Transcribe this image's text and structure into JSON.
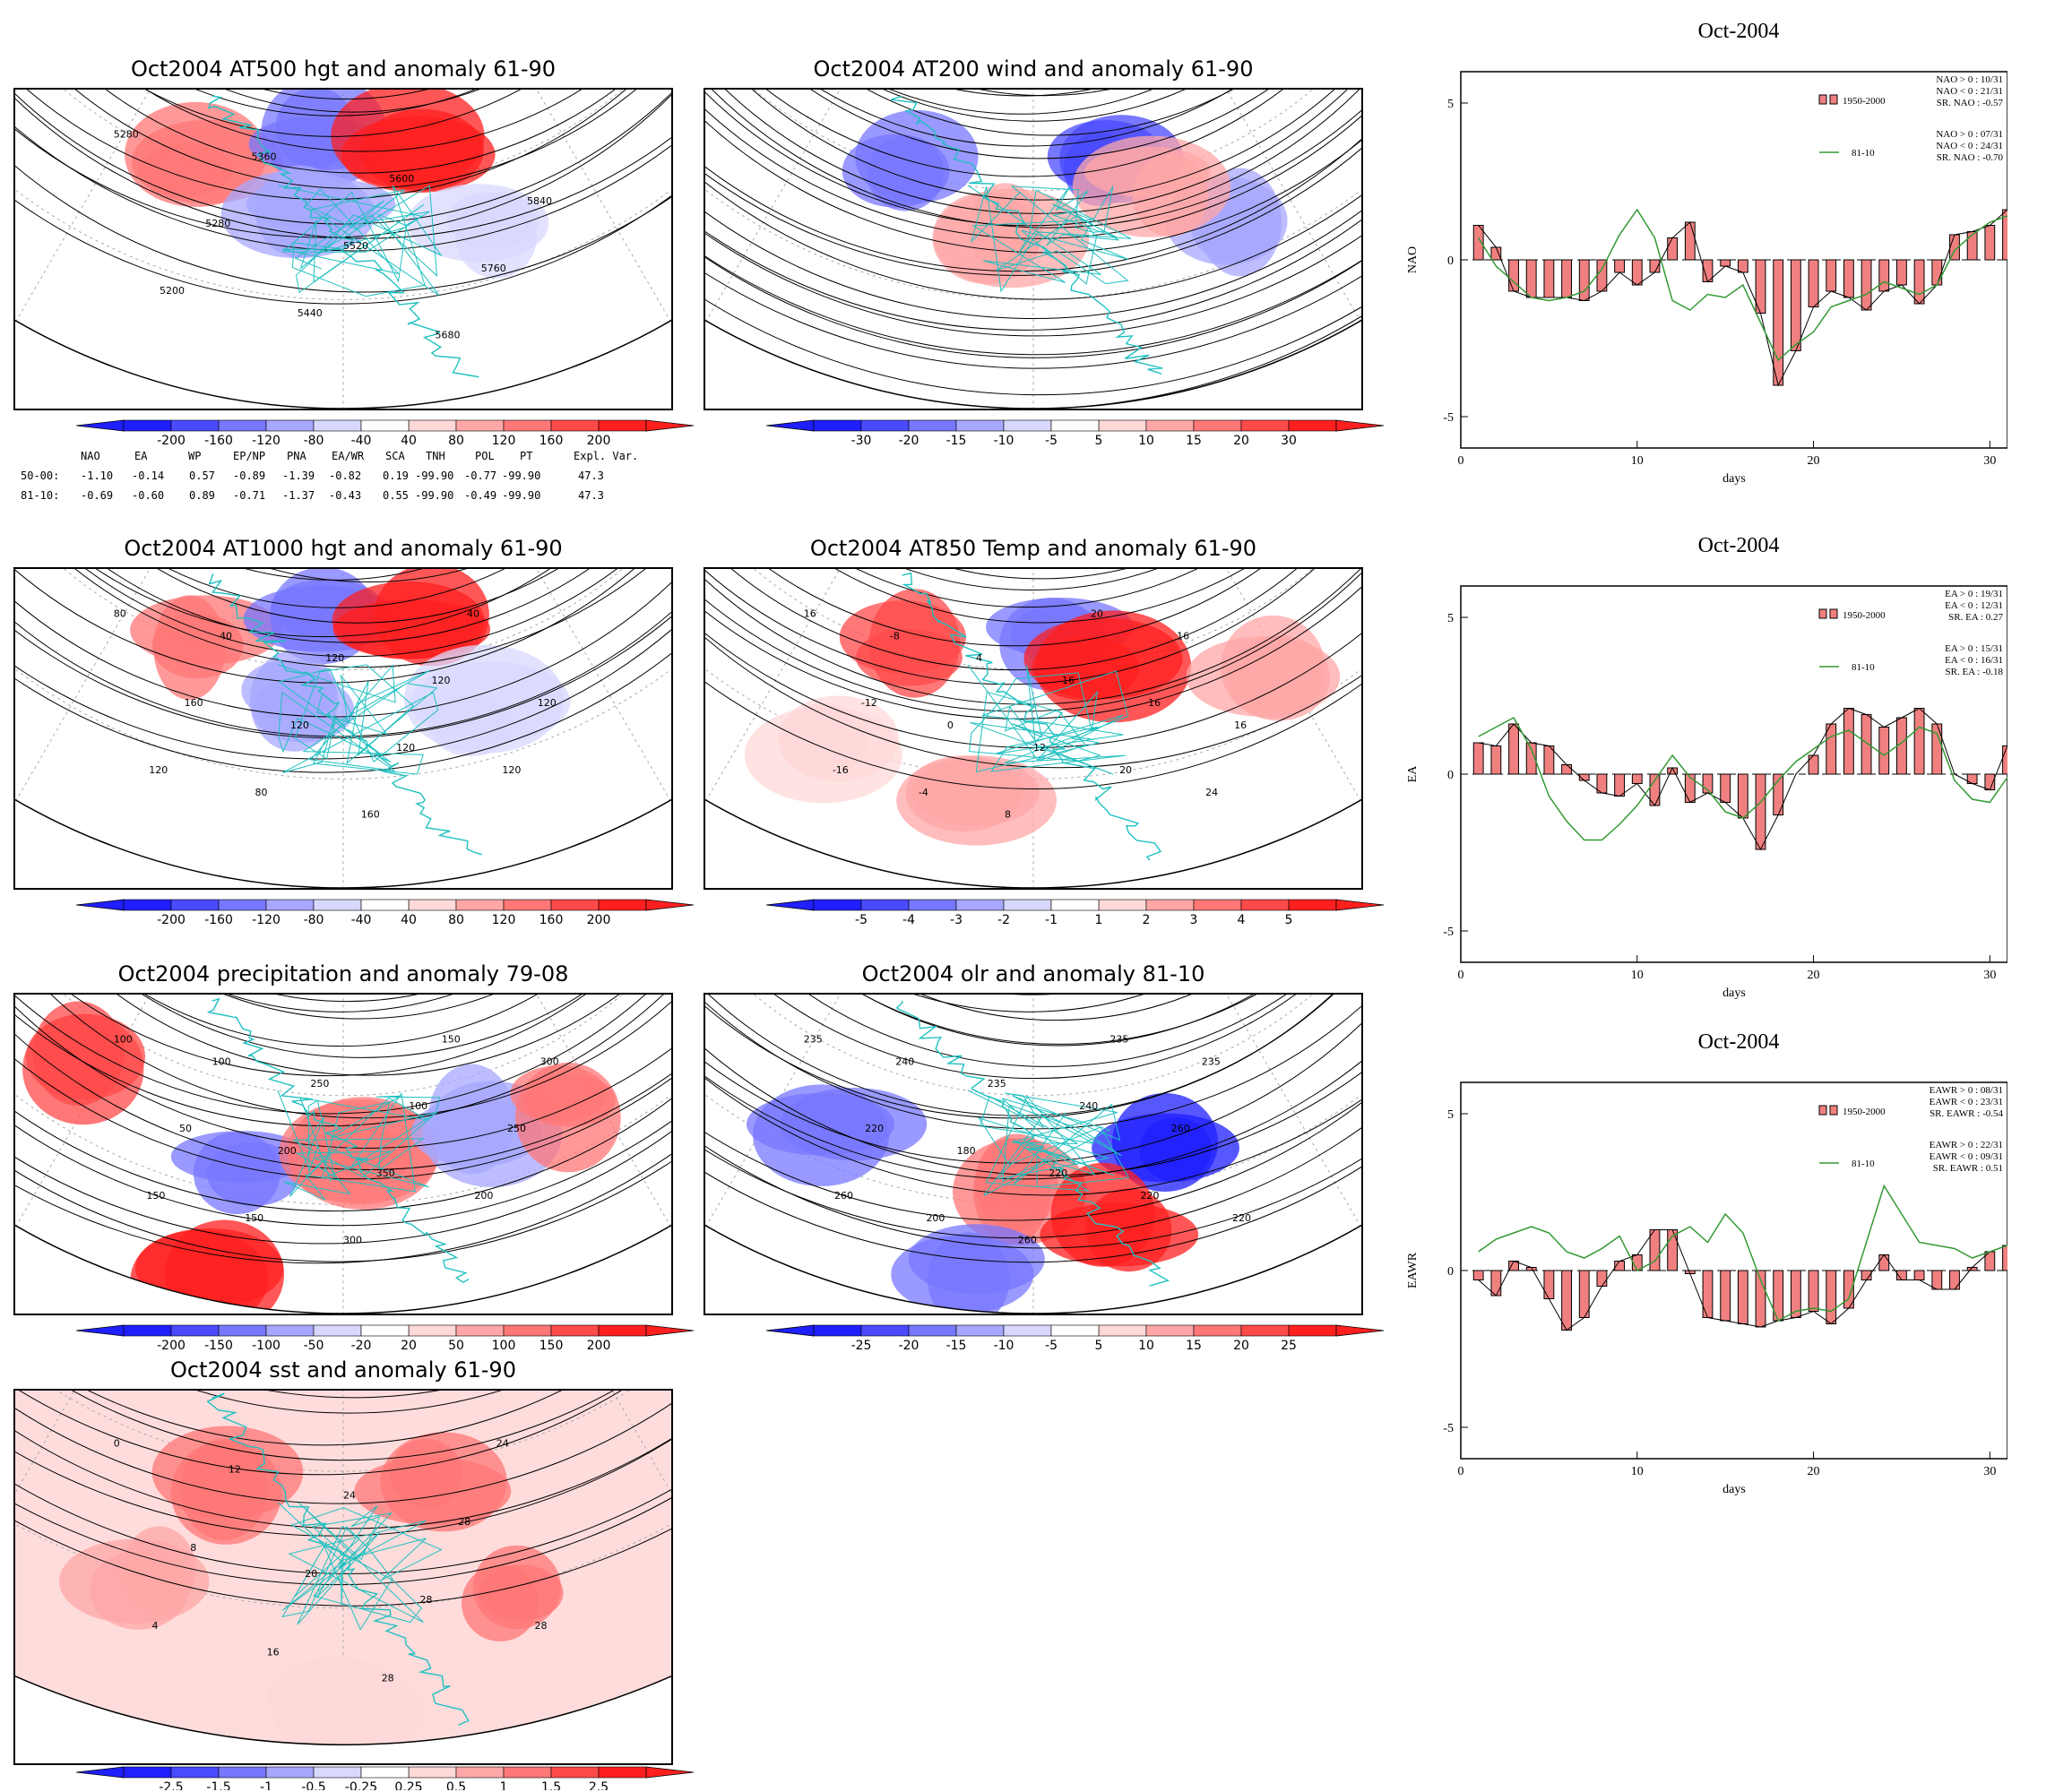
{
  "maps": [
    {
      "id": "z500",
      "title": "Oct2004 AT500 hgt and anomaly 61-90",
      "palette": "geo",
      "colorbar": [
        "-200",
        "-160",
        "-120",
        "-80",
        "-40",
        "40",
        "80",
        "120",
        "160",
        "200"
      ],
      "contour_labels": [
        "5280",
        "5200",
        "5280",
        "5360",
        "5440",
        "5520",
        "5600",
        "5680",
        "5760",
        "5840"
      ]
    },
    {
      "id": "u200",
      "title": "Oct2004 AT200 wind and anomaly 61-90",
      "palette": "stream",
      "colorbar": [
        "-30",
        "-20",
        "-15",
        "-10",
        "-5",
        "5",
        "10",
        "15",
        "20",
        "30"
      ],
      "contour_labels": []
    },
    {
      "id": "z1000",
      "title": "Oct2004 AT1000 hgt and anomaly 61-90",
      "palette": "geo",
      "colorbar": [
        "-200",
        "-160",
        "-120",
        "-80",
        "-40",
        "40",
        "80",
        "120",
        "160",
        "200"
      ],
      "contour_labels": [
        "80",
        "120",
        "160",
        "40",
        "80",
        "120",
        "120",
        "160",
        "120",
        "120",
        "40",
        "120",
        "120"
      ]
    },
    {
      "id": "t850",
      "title": "Oct2004 AT850 Temp and anomaly 61-90",
      "palette": "temp",
      "colorbar": [
        "-5",
        "-4",
        "-3",
        "-2",
        "-1",
        "1",
        "2",
        "3",
        "4",
        "5"
      ],
      "contour_labels": [
        "16",
        "-16",
        "-12",
        "-8",
        "-4",
        "0",
        "4",
        "8",
        "12",
        "16",
        "20",
        "20",
        "16",
        "16",
        "24",
        "16"
      ]
    },
    {
      "id": "prcp",
      "title": "Oct2004 precipitation and anomaly 79-08",
      "palette": "prcp",
      "colorbar": [
        "-200",
        "-150",
        "-100",
        "-50",
        "-20",
        "20",
        "50",
        "100",
        "150",
        "200"
      ],
      "contour_labels": [
        "100",
        "150",
        "50",
        "100",
        "150",
        "200",
        "250",
        "300",
        "350",
        "100",
        "150",
        "200",
        "250",
        "300"
      ]
    },
    {
      "id": "olr",
      "title": "Oct2004 olr and anomaly 81-10",
      "palette": "olr",
      "colorbar": [
        "-25",
        "-20",
        "-15",
        "-10",
        "-5",
        "5",
        "10",
        "15",
        "20",
        "25"
      ],
      "contour_labels": [
        "235",
        "260",
        "220",
        "240",
        "200",
        "180",
        "235",
        "260",
        "220",
        "240",
        "235",
        "220",
        "260",
        "235",
        "220"
      ]
    },
    {
      "id": "sst",
      "title": "Oct2004 sst and anomaly 61-90",
      "palette": "sst",
      "colorbar": [
        "-2.5",
        "-1.5",
        "-1",
        "-0.5",
        "-0.25",
        "0.25",
        "0.5",
        "1",
        "1.5",
        "2.5"
      ],
      "contour_labels": [
        "0",
        "4",
        "8",
        "12",
        "16",
        "20",
        "24",
        "28",
        "28",
        "28",
        "24",
        "28"
      ]
    }
  ],
  "teleconnection_table": {
    "headers": [
      "NAO",
      "EA",
      "WP",
      "EP/NP",
      "PNA",
      "EA/WR",
      "SCA",
      "TNH",
      "POL",
      "PT",
      "Expl. Var."
    ],
    "rows": [
      {
        "label": "50-00:",
        "values": [
          "-1.10",
          "-0.14",
          "0.57",
          "-0.89",
          "-1.39",
          "-0.82",
          "0.19",
          "-99.90",
          "-0.77",
          "-99.90",
          "47.3"
        ]
      },
      {
        "label": "81-10:",
        "values": [
          "-0.69",
          "-0.60",
          "0.89",
          "-0.71",
          "-1.37",
          "-0.43",
          "0.55",
          "-99.90",
          "-0.49",
          "-99.90",
          "47.3"
        ]
      }
    ]
  },
  "chart_data": [
    {
      "type": "bar",
      "title": "Oct-2004",
      "xlabel": "days",
      "ylabel": "NAO",
      "xlim": [
        0,
        31
      ],
      "ylim": [
        -6,
        6
      ],
      "xticks": [
        "0",
        "10",
        "20",
        "30"
      ],
      "yticks": [
        "5",
        "0",
        "-5"
      ],
      "series": [
        {
          "name": "1950-2000",
          "kind": "bar",
          "color": "#f08080",
          "x": [
            1,
            2,
            3,
            4,
            5,
            6,
            7,
            8,
            9,
            10,
            11,
            12,
            13,
            14,
            15,
            16,
            17,
            18,
            19,
            20,
            21,
            22,
            23,
            24,
            25,
            26,
            27,
            28,
            29,
            30,
            31
          ],
          "values": [
            1.1,
            0.4,
            -1.0,
            -1.2,
            -1.2,
            -1.2,
            -1.3,
            -1.0,
            -0.4,
            -0.8,
            -0.4,
            0.7,
            1.2,
            -0.7,
            -0.2,
            -0.4,
            -1.7,
            -4.0,
            -2.9,
            -1.5,
            -1.0,
            -1.2,
            -1.6,
            -1.0,
            -0.8,
            -1.4,
            -0.8,
            0.8,
            0.9,
            1.1,
            1.6
          ]
        },
        {
          "name": "81-10",
          "kind": "line",
          "color": "#339933",
          "x": [
            1,
            2,
            3,
            4,
            5,
            6,
            7,
            8,
            9,
            10,
            11,
            12,
            13,
            14,
            15,
            16,
            17,
            18,
            19,
            20,
            21,
            22,
            23,
            24,
            25,
            26,
            27,
            28,
            29,
            30,
            31
          ],
          "values": [
            0.7,
            -0.2,
            -0.7,
            -1.2,
            -1.3,
            -1.2,
            -1.0,
            -0.3,
            0.8,
            1.6,
            0.7,
            -1.3,
            -1.6,
            -1.1,
            -1.2,
            -0.8,
            -2.0,
            -3.2,
            -2.7,
            -2.3,
            -1.5,
            -1.3,
            -1.1,
            -0.7,
            -0.9,
            -1.1,
            -0.8,
            0.3,
            0.8,
            1.2,
            1.4
          ]
        }
      ],
      "legend": {
        "line1": "NAO > 0 : 10/31",
        "line2": "NAO < 0 : 21/31",
        "line3": "SR. NAO : -0.57",
        "line4": "NAO > 0 : 07/31",
        "line5": "NAO < 0 : 24/31",
        "line6": "SR. NAO : -0.70"
      }
    },
    {
      "type": "bar",
      "title": "Oct-2004",
      "xlabel": "days",
      "ylabel": "EA",
      "xlim": [
        0,
        31
      ],
      "ylim": [
        -6,
        6
      ],
      "xticks": [
        "0",
        "10",
        "20",
        "30"
      ],
      "yticks": [
        "5",
        "0",
        "-5"
      ],
      "series": [
        {
          "name": "1950-2000",
          "kind": "bar",
          "color": "#f08080",
          "x": [
            1,
            2,
            3,
            4,
            5,
            6,
            7,
            8,
            9,
            10,
            11,
            12,
            13,
            14,
            15,
            16,
            17,
            18,
            19,
            20,
            21,
            22,
            23,
            24,
            25,
            26,
            27,
            28,
            29,
            30,
            31
          ],
          "values": [
            1.0,
            0.9,
            1.6,
            1.0,
            0.9,
            0.3,
            -0.2,
            -0.6,
            -0.7,
            -0.3,
            -1.0,
            0.2,
            -0.9,
            -0.6,
            -0.9,
            -1.4,
            -2.4,
            -1.3,
            0.0,
            0.6,
            1.6,
            2.1,
            1.9,
            1.5,
            1.8,
            2.1,
            1.6,
            0.0,
            -0.3,
            -0.5,
            0.9
          ]
        },
        {
          "name": "81-10",
          "kind": "line",
          "color": "#339933",
          "x": [
            1,
            2,
            3,
            4,
            5,
            6,
            7,
            8,
            9,
            10,
            11,
            12,
            13,
            14,
            15,
            16,
            17,
            18,
            19,
            20,
            21,
            22,
            23,
            24,
            25,
            26,
            27,
            28,
            29,
            30,
            31
          ],
          "values": [
            1.2,
            1.5,
            1.8,
            0.8,
            -0.7,
            -1.5,
            -2.1,
            -2.1,
            -1.6,
            -1.0,
            -0.2,
            0.6,
            -0.1,
            -0.5,
            -1.2,
            -1.4,
            -0.9,
            -0.2,
            0.4,
            0.8,
            1.2,
            1.4,
            1.0,
            0.6,
            1.0,
            1.5,
            1.3,
            -0.2,
            -0.8,
            -0.9,
            -0.1
          ]
        }
      ],
      "legend": {
        "line1": "EA > 0 : 19/31",
        "line2": "EA < 0 : 12/31",
        "line3": "SR. EA : 0.27",
        "line4": "EA > 0 : 15/31",
        "line5": "EA < 0 : 16/31",
        "line6": "SR. EA : -0.18"
      }
    },
    {
      "type": "bar",
      "title": "Oct-2004",
      "xlabel": "days",
      "ylabel": "EAWR",
      "xlim": [
        0,
        31
      ],
      "ylim": [
        -6,
        6
      ],
      "xticks": [
        "0",
        "10",
        "20",
        "30"
      ],
      "yticks": [
        "5",
        "0",
        "-5"
      ],
      "series": [
        {
          "name": "1950-2000",
          "kind": "bar",
          "color": "#f08080",
          "x": [
            1,
            2,
            3,
            4,
            5,
            6,
            7,
            8,
            9,
            10,
            11,
            12,
            13,
            14,
            15,
            16,
            17,
            18,
            19,
            20,
            21,
            22,
            23,
            24,
            25,
            26,
            27,
            28,
            29,
            30,
            31
          ],
          "values": [
            -0.3,
            -0.8,
            0.3,
            0.1,
            -0.9,
            -1.9,
            -1.5,
            -0.5,
            0.3,
            0.5,
            1.3,
            1.3,
            -0.1,
            -1.5,
            -1.6,
            -1.7,
            -1.8,
            -1.6,
            -1.5,
            -1.3,
            -1.7,
            -1.2,
            -0.3,
            0.5,
            -0.3,
            -0.3,
            -0.6,
            -0.6,
            0.1,
            0.6,
            0.8
          ]
        },
        {
          "name": "81-10",
          "kind": "line",
          "color": "#339933",
          "x": [
            1,
            2,
            3,
            4,
            5,
            6,
            7,
            8,
            9,
            10,
            11,
            12,
            13,
            14,
            15,
            16,
            17,
            18,
            19,
            20,
            21,
            22,
            23,
            24,
            25,
            26,
            27,
            28,
            29,
            30,
            31
          ],
          "values": [
            0.6,
            1.0,
            1.2,
            1.4,
            1.2,
            0.6,
            0.4,
            0.7,
            1.1,
            0.0,
            0.3,
            1.1,
            1.4,
            0.9,
            1.8,
            1.2,
            -0.3,
            -1.6,
            -1.3,
            -1.2,
            -1.3,
            -0.9,
            0.9,
            2.7,
            1.8,
            0.9,
            0.8,
            0.7,
            0.4,
            0.6,
            0.8
          ]
        }
      ],
      "legend": {
        "line1": "EAWR > 0 : 08/31",
        "line2": "EAWR < 0 : 23/31",
        "line3": "SR. EAWR : -0.54",
        "line4": "EAWR > 0 : 22/31",
        "line5": "EAWR < 0 : 09/31",
        "line6": "SR. EAWR : 0.51"
      }
    }
  ],
  "colors": {
    "neg": [
      "#1f1fff",
      "#4a4aff",
      "#7777ff",
      "#a7a7ff",
      "#d8d8ff"
    ],
    "pos": [
      "#ffd8d8",
      "#ffa7a7",
      "#ff7777",
      "#ff4a4a",
      "#ff1f1f"
    ],
    "coast": "#20c0c0",
    "bar": "#f08080",
    "line": "#339933"
  }
}
